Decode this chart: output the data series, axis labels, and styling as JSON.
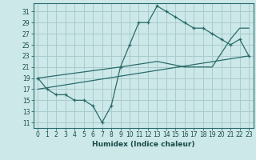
{
  "title": "",
  "xlabel": "Humidex (Indice chaleur)",
  "bg_color": "#cce8e8",
  "grid_color": "#aacccc",
  "line_color": "#2a6b6b",
  "xlim": [
    -0.5,
    23.5
  ],
  "ylim": [
    10.0,
    32.5
  ],
  "xticks": [
    0,
    1,
    2,
    3,
    4,
    5,
    6,
    7,
    8,
    9,
    10,
    11,
    12,
    13,
    14,
    15,
    16,
    17,
    18,
    19,
    20,
    21,
    22,
    23
  ],
  "yticks": [
    11,
    13,
    15,
    17,
    19,
    21,
    23,
    25,
    27,
    29,
    31
  ],
  "line1_x": [
    0,
    1,
    2,
    3,
    4,
    5,
    6,
    7,
    8,
    9,
    10,
    11,
    12,
    13,
    14,
    15,
    16,
    17,
    18,
    19,
    20,
    21,
    22,
    23
  ],
  "line1_y": [
    19,
    17,
    16,
    16,
    15,
    15,
    14,
    11,
    14,
    21,
    25,
    29,
    29,
    32,
    31,
    30,
    29,
    28,
    28,
    27,
    26,
    25,
    26,
    23
  ],
  "line2_x": [
    0,
    9,
    13,
    16,
    19,
    21,
    22,
    23
  ],
  "line2_y": [
    19,
    21,
    22,
    21,
    21,
    26,
    28,
    28
  ],
  "line3_x": [
    0,
    23
  ],
  "line3_y": [
    17,
    23
  ]
}
